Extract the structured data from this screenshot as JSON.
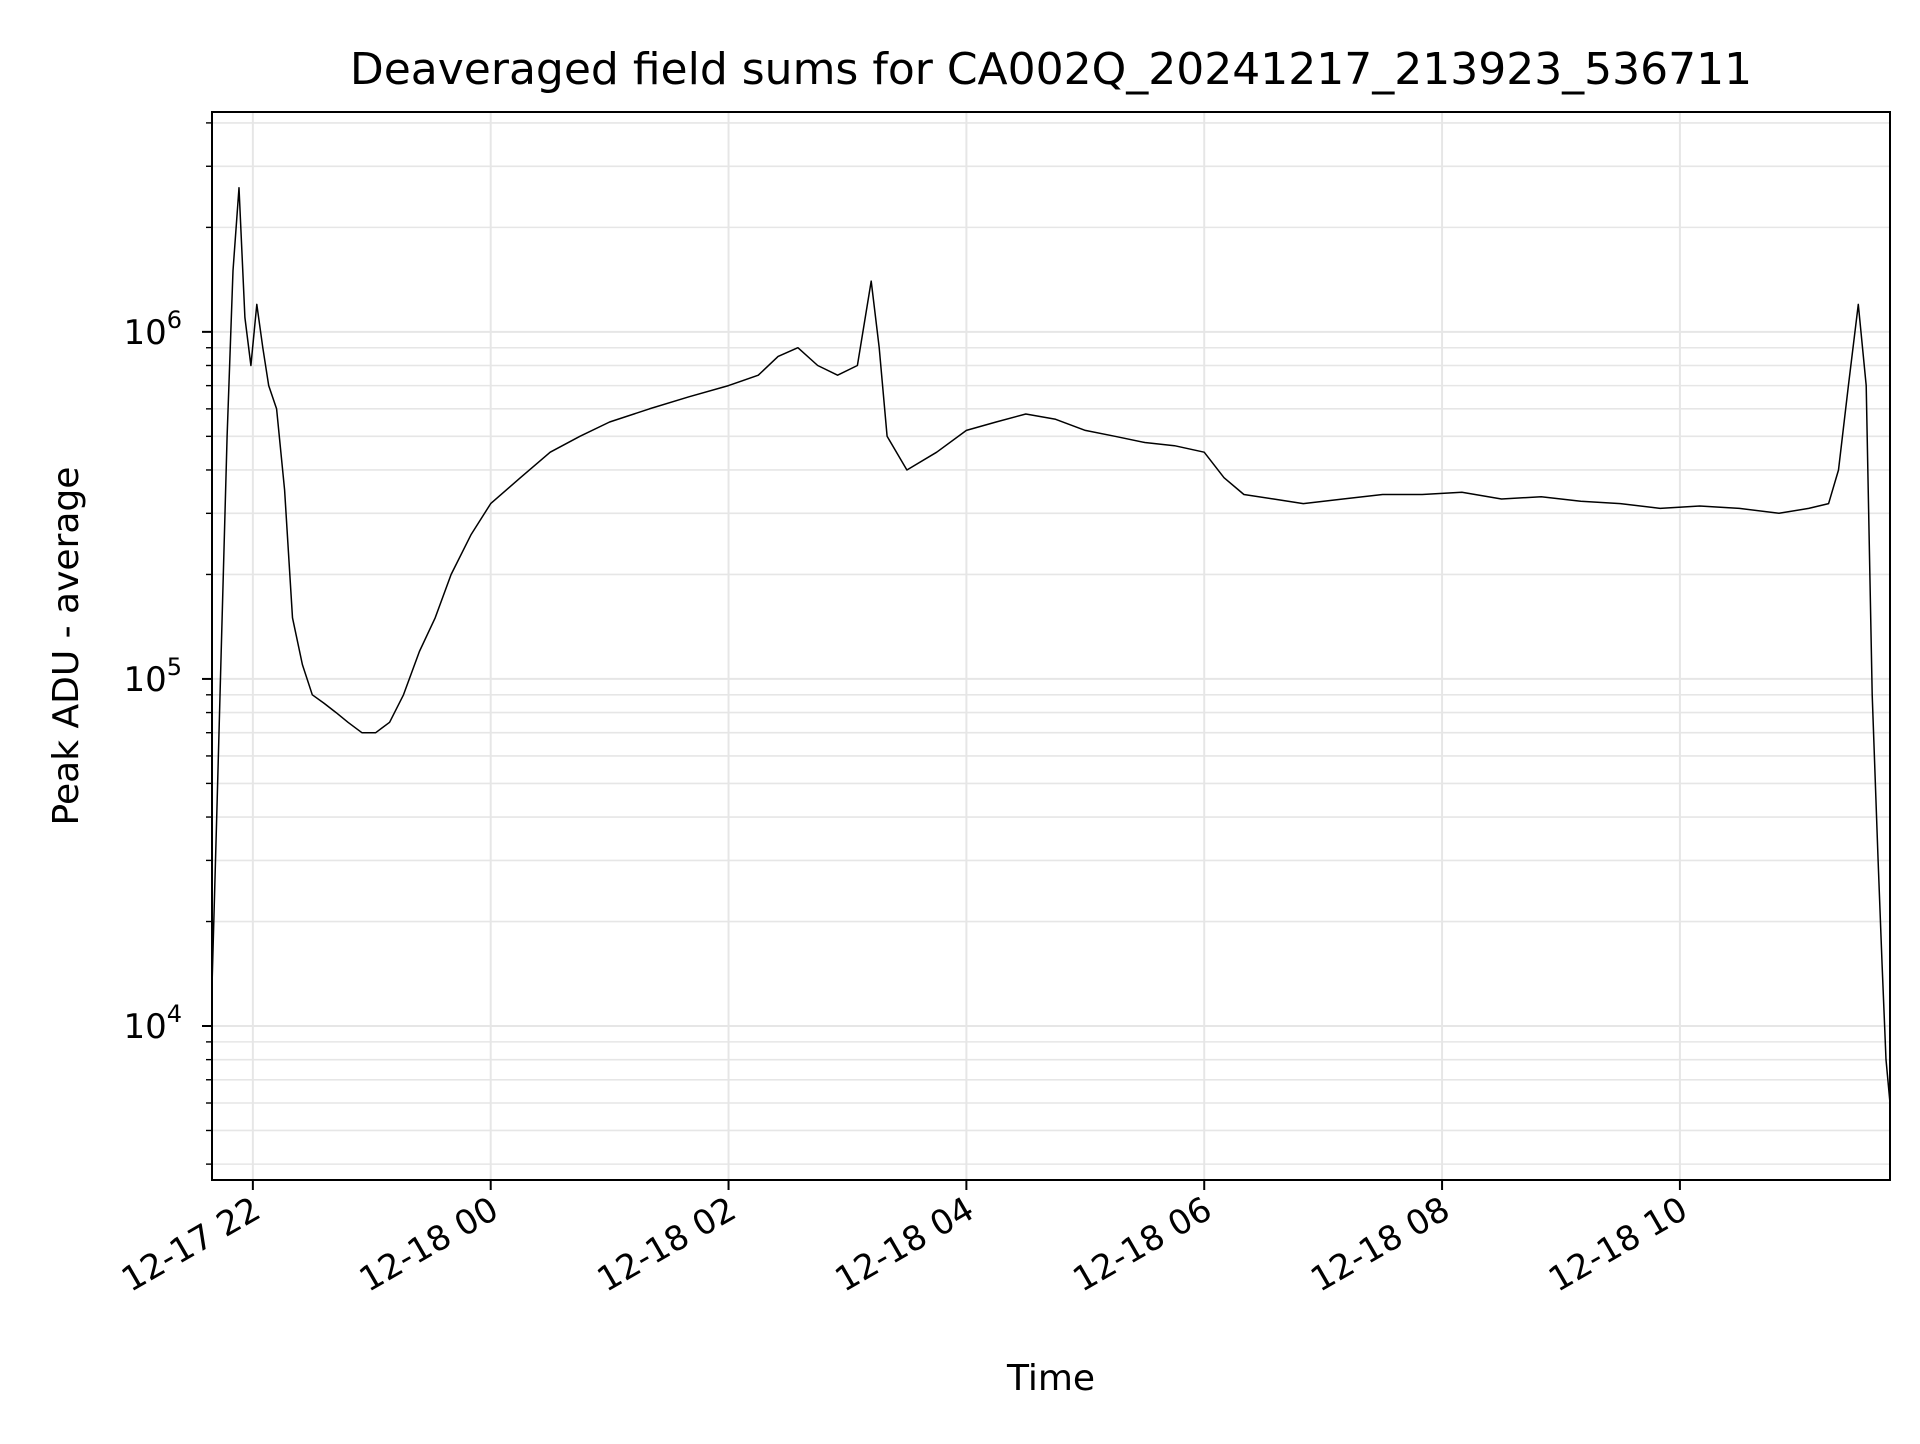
{
  "chart_data": {
    "type": "line",
    "title": "Deaveraged field sums for CA002Q_20241217_213923_536711",
    "xlabel": "Time",
    "ylabel": "Peak ADU - average",
    "yscale": "log",
    "grid": true,
    "line_color": "#000000",
    "grid_color": "#e6e6e6",
    "x_range": [
      "2024-12-17 21:39:23",
      "2024-12-18 11:46:00"
    ],
    "ylim": [
      3600,
      4300000
    ],
    "x_ticks": [
      {
        "time": "2024-12-17 22:00",
        "label": "12-17 22"
      },
      {
        "time": "2024-12-18 00:00",
        "label": "12-18 00"
      },
      {
        "time": "2024-12-18 02:00",
        "label": "12-18 02"
      },
      {
        "time": "2024-12-18 04:00",
        "label": "12-18 04"
      },
      {
        "time": "2024-12-18 06:00",
        "label": "12-18 06"
      },
      {
        "time": "2024-12-18 08:00",
        "label": "12-18 08"
      },
      {
        "time": "2024-12-18 10:00",
        "label": "12-18 10"
      }
    ],
    "y_major_ticks": [
      {
        "value": 10000,
        "base": "10",
        "exp": "4"
      },
      {
        "value": 100000,
        "base": "10",
        "exp": "5"
      },
      {
        "value": 1000000,
        "base": "10",
        "exp": "6"
      }
    ],
    "series": [
      {
        "x": [
          "2024-12-17 21:39:23",
          "2024-12-17 21:42",
          "2024-12-17 21:44",
          "2024-12-17 21:47",
          "2024-12-17 21:50",
          "2024-12-17 21:53",
          "2024-12-17 21:56",
          "2024-12-17 21:59",
          "2024-12-17 22:02",
          "2024-12-17 22:05",
          "2024-12-17 22:08",
          "2024-12-17 22:12",
          "2024-12-17 22:16",
          "2024-12-17 22:20",
          "2024-12-17 22:25",
          "2024-12-17 22:30",
          "2024-12-17 22:36",
          "2024-12-17 22:42",
          "2024-12-17 22:48",
          "2024-12-17 22:55",
          "2024-12-17 23:02",
          "2024-12-17 23:09",
          "2024-12-17 23:16",
          "2024-12-17 23:24",
          "2024-12-17 23:32",
          "2024-12-17 23:40",
          "2024-12-17 23:50",
          "2024-12-18 00:00",
          "2024-12-18 00:15",
          "2024-12-18 00:30",
          "2024-12-18 00:45",
          "2024-12-18 01:00",
          "2024-12-18 01:20",
          "2024-12-18 01:40",
          "2024-12-18 02:00",
          "2024-12-18 02:15",
          "2024-12-18 02:25",
          "2024-12-18 02:35",
          "2024-12-18 02:45",
          "2024-12-18 02:55",
          "2024-12-18 03:05",
          "2024-12-18 03:12",
          "2024-12-18 03:16",
          "2024-12-18 03:20",
          "2024-12-18 03:30",
          "2024-12-18 03:45",
          "2024-12-18 04:00",
          "2024-12-18 04:15",
          "2024-12-18 04:30",
          "2024-12-18 04:45",
          "2024-12-18 05:00",
          "2024-12-18 05:15",
          "2024-12-18 05:30",
          "2024-12-18 05:45",
          "2024-12-18 06:00",
          "2024-12-18 06:10",
          "2024-12-18 06:20",
          "2024-12-18 06:35",
          "2024-12-18 06:50",
          "2024-12-18 07:10",
          "2024-12-18 07:30",
          "2024-12-18 07:50",
          "2024-12-18 08:10",
          "2024-12-18 08:30",
          "2024-12-18 08:50",
          "2024-12-18 09:10",
          "2024-12-18 09:30",
          "2024-12-18 09:50",
          "2024-12-18 10:10",
          "2024-12-18 10:30",
          "2024-12-18 10:50",
          "2024-12-18 11:05",
          "2024-12-18 11:15",
          "2024-12-18 11:20",
          "2024-12-18 11:25",
          "2024-12-18 11:30",
          "2024-12-18 11:34",
          "2024-12-18 11:37",
          "2024-12-18 11:40",
          "2024-12-18 11:42",
          "2024-12-18 11:44",
          "2024-12-18 11:46"
        ],
        "y": [
          13000,
          45000,
          120000,
          500000,
          1500000,
          2600000,
          1100000,
          800000,
          1200000,
          900000,
          700000,
          600000,
          350000,
          150000,
          110000,
          90000,
          85000,
          80000,
          75000,
          70000,
          70000,
          75000,
          90000,
          120000,
          150000,
          200000,
          260000,
          320000,
          380000,
          450000,
          500000,
          550000,
          600000,
          650000,
          700000,
          750000,
          850000,
          900000,
          800000,
          750000,
          800000,
          1400000,
          900000,
          500000,
          400000,
          450000,
          520000,
          550000,
          580000,
          560000,
          520000,
          500000,
          480000,
          470000,
          450000,
          380000,
          340000,
          330000,
          320000,
          330000,
          340000,
          340000,
          345000,
          330000,
          335000,
          325000,
          320000,
          310000,
          315000,
          310000,
          300000,
          310000,
          320000,
          400000,
          700000,
          1200000,
          700000,
          90000,
          30000,
          15000,
          8000,
          6000
        ]
      }
    ]
  }
}
